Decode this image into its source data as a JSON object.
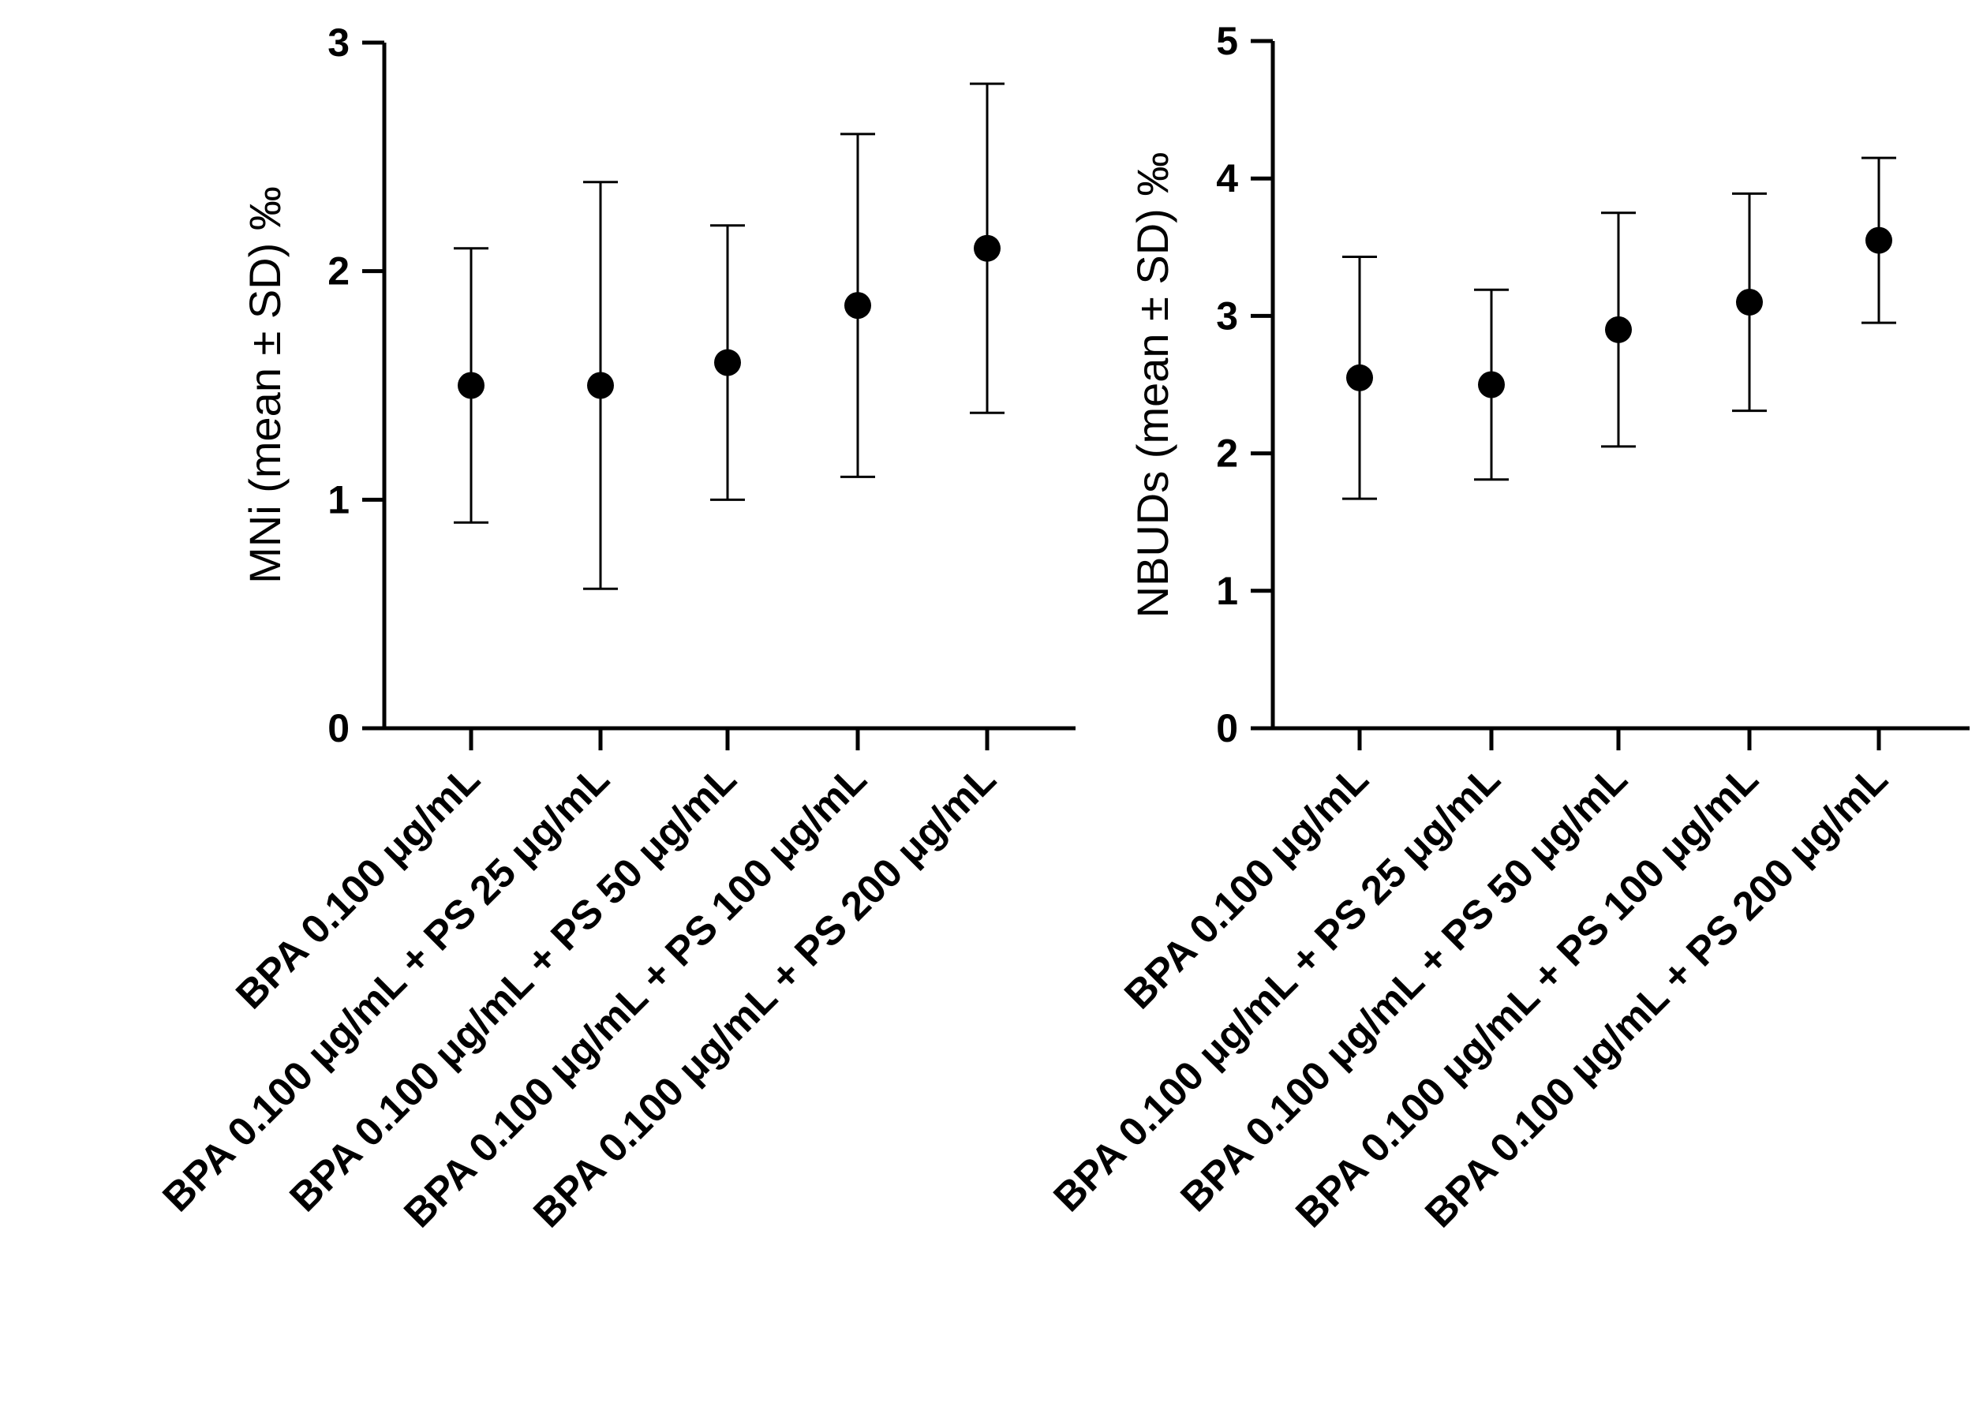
{
  "chart_data": [
    {
      "type": "scatter",
      "title": "",
      "xlabel": "",
      "ylabel": "MNi (mean ± SD) ‰",
      "ylim": [
        0,
        3
      ],
      "yticks": [
        "0",
        "1",
        "2",
        "3"
      ],
      "categories": [
        "BPA 0.100 μg/mL",
        "BPA 0.100 μg/mL + PS 25 μg/mL",
        "BPA 0.100 μg/mL + PS 50 μg/mL",
        "BPA 0.100 μg/mL + PS 100 μg/mL",
        "BPA 0.100 μg/mL + PS 200 μg/mL"
      ],
      "series": [
        {
          "name": "MNi",
          "values": [
            1.5,
            1.5,
            1.6,
            1.85,
            2.1
          ],
          "sd": [
            0.6,
            0.89,
            0.6,
            0.75,
            0.72
          ]
        }
      ],
      "grid": false,
      "legend": "none"
    },
    {
      "type": "scatter",
      "title": "",
      "xlabel": "",
      "ylabel": "NBUDs (mean ± SD) ‰",
      "ylim": [
        0,
        5
      ],
      "yticks": [
        "0",
        "1",
        "2",
        "3",
        "4",
        "5"
      ],
      "categories": [
        "BPA 0.100 μg/mL",
        "BPA 0.100 μg/mL + PS 25 μg/mL",
        "BPA 0.100 μg/mL + PS 50 μg/mL",
        "BPA 0.100 μg/mL + PS 100 μg/mL",
        "BPA 0.100 μg/mL + PS 200 μg/mL"
      ],
      "series": [
        {
          "name": "NBUDs",
          "values": [
            2.55,
            2.5,
            2.9,
            3.1,
            3.55
          ],
          "sd": [
            0.88,
            0.69,
            0.85,
            0.79,
            0.6
          ]
        }
      ],
      "grid": false,
      "legend": "none"
    }
  ]
}
